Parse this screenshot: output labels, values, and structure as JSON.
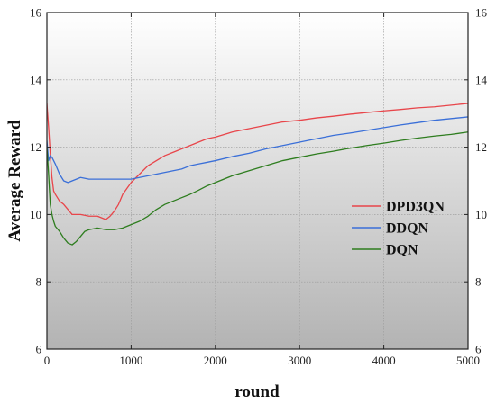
{
  "chart_data": {
    "type": "line",
    "xlabel": "round",
    "ylabel": "Average Reward",
    "xlim": [
      0,
      5000
    ],
    "ylim": [
      6,
      16
    ],
    "x_ticks": [
      0,
      1000,
      2000,
      3000,
      4000,
      5000
    ],
    "y_ticks": [
      6,
      8,
      10,
      12,
      14,
      16
    ],
    "grid": true,
    "right_axis_mirrored": true,
    "background": "vertical gradient, white at top to gray at bottom",
    "legend": {
      "position": "center-right",
      "style": "line-sample"
    },
    "series": [
      {
        "name": "DPD3QN",
        "color": "#e8454a",
        "points": [
          [
            0,
            13.3
          ],
          [
            20,
            12.6
          ],
          [
            40,
            11.8
          ],
          [
            60,
            11.1
          ],
          [
            80,
            10.7
          ],
          [
            100,
            10.6
          ],
          [
            150,
            10.4
          ],
          [
            200,
            10.3
          ],
          [
            250,
            10.15
          ],
          [
            300,
            10.0
          ],
          [
            400,
            10.0
          ],
          [
            500,
            9.95
          ],
          [
            600,
            9.95
          ],
          [
            700,
            9.85
          ],
          [
            750,
            9.95
          ],
          [
            800,
            10.1
          ],
          [
            850,
            10.3
          ],
          [
            900,
            10.6
          ],
          [
            1000,
            10.95
          ],
          [
            1100,
            11.2
          ],
          [
            1200,
            11.45
          ],
          [
            1300,
            11.6
          ],
          [
            1400,
            11.75
          ],
          [
            1500,
            11.85
          ],
          [
            1600,
            11.95
          ],
          [
            1700,
            12.05
          ],
          [
            1800,
            12.15
          ],
          [
            1900,
            12.25
          ],
          [
            2000,
            12.3
          ],
          [
            2200,
            12.45
          ],
          [
            2400,
            12.55
          ],
          [
            2600,
            12.65
          ],
          [
            2800,
            12.75
          ],
          [
            3000,
            12.8
          ],
          [
            3200,
            12.87
          ],
          [
            3400,
            12.92
          ],
          [
            3600,
            12.98
          ],
          [
            3800,
            13.03
          ],
          [
            4000,
            13.08
          ],
          [
            4200,
            13.12
          ],
          [
            4400,
            13.17
          ],
          [
            4600,
            13.2
          ],
          [
            4800,
            13.25
          ],
          [
            5000,
            13.3
          ]
        ]
      },
      {
        "name": "DDQN",
        "color": "#3a6fd8",
        "points": [
          [
            0,
            12.2
          ],
          [
            20,
            11.6
          ],
          [
            40,
            11.75
          ],
          [
            60,
            11.7
          ],
          [
            80,
            11.6
          ],
          [
            100,
            11.5
          ],
          [
            150,
            11.2
          ],
          [
            200,
            11.0
          ],
          [
            250,
            10.95
          ],
          [
            300,
            11.0
          ],
          [
            350,
            11.05
          ],
          [
            400,
            11.1
          ],
          [
            500,
            11.05
          ],
          [
            600,
            11.05
          ],
          [
            700,
            11.05
          ],
          [
            800,
            11.05
          ],
          [
            900,
            11.05
          ],
          [
            1000,
            11.05
          ],
          [
            1100,
            11.1
          ],
          [
            1200,
            11.15
          ],
          [
            1300,
            11.2
          ],
          [
            1400,
            11.25
          ],
          [
            1500,
            11.3
          ],
          [
            1600,
            11.35
          ],
          [
            1700,
            11.45
          ],
          [
            1800,
            11.5
          ],
          [
            1900,
            11.55
          ],
          [
            2000,
            11.6
          ],
          [
            2200,
            11.72
          ],
          [
            2400,
            11.82
          ],
          [
            2600,
            11.95
          ],
          [
            2800,
            12.05
          ],
          [
            3000,
            12.15
          ],
          [
            3200,
            12.25
          ],
          [
            3400,
            12.35
          ],
          [
            3600,
            12.42
          ],
          [
            3800,
            12.5
          ],
          [
            4000,
            12.58
          ],
          [
            4200,
            12.66
          ],
          [
            4400,
            12.73
          ],
          [
            4600,
            12.8
          ],
          [
            4800,
            12.85
          ],
          [
            5000,
            12.9
          ]
        ]
      },
      {
        "name": "DQN",
        "color": "#2e7d1f",
        "points": [
          [
            0,
            12.0
          ],
          [
            20,
            11.2
          ],
          [
            40,
            10.3
          ],
          [
            60,
            10.0
          ],
          [
            80,
            9.8
          ],
          [
            100,
            9.65
          ],
          [
            150,
            9.5
          ],
          [
            200,
            9.3
          ],
          [
            250,
            9.15
          ],
          [
            300,
            9.1
          ],
          [
            350,
            9.2
          ],
          [
            400,
            9.35
          ],
          [
            450,
            9.5
          ],
          [
            500,
            9.55
          ],
          [
            600,
            9.6
          ],
          [
            700,
            9.55
          ],
          [
            800,
            9.55
          ],
          [
            900,
            9.6
          ],
          [
            1000,
            9.7
          ],
          [
            1100,
            9.8
          ],
          [
            1200,
            9.95
          ],
          [
            1300,
            10.15
          ],
          [
            1400,
            10.3
          ],
          [
            1500,
            10.4
          ],
          [
            1600,
            10.5
          ],
          [
            1700,
            10.6
          ],
          [
            1800,
            10.72
          ],
          [
            1900,
            10.85
          ],
          [
            2000,
            10.95
          ],
          [
            2200,
            11.15
          ],
          [
            2400,
            11.3
          ],
          [
            2600,
            11.45
          ],
          [
            2800,
            11.6
          ],
          [
            3000,
            11.7
          ],
          [
            3200,
            11.8
          ],
          [
            3400,
            11.88
          ],
          [
            3600,
            11.97
          ],
          [
            3800,
            12.05
          ],
          [
            4000,
            12.12
          ],
          [
            4200,
            12.2
          ],
          [
            4400,
            12.27
          ],
          [
            4600,
            12.33
          ],
          [
            4800,
            12.38
          ],
          [
            5000,
            12.45
          ]
        ]
      }
    ]
  }
}
